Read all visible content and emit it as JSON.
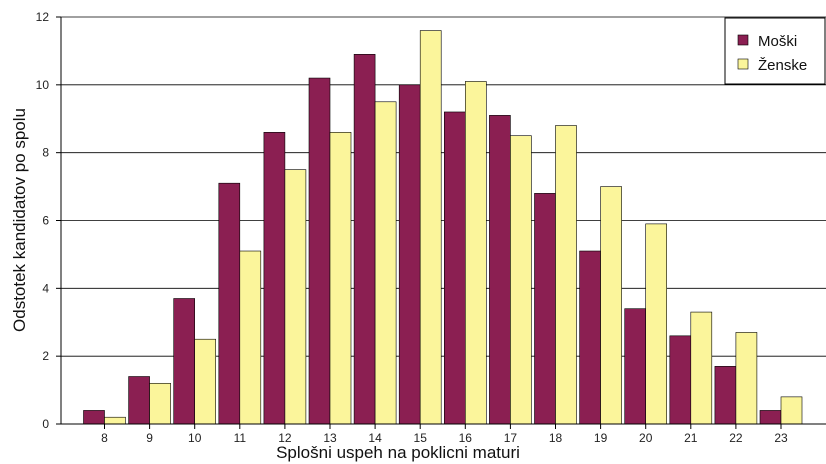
{
  "chart_data": {
    "type": "bar",
    "title": "",
    "xlabel": "Splošni uspeh na poklicni maturi",
    "ylabel": "Odstotek kandidatov po spolu",
    "categories": [
      "8",
      "9",
      "10",
      "11",
      "12",
      "13",
      "14",
      "15",
      "16",
      "17",
      "18",
      "19",
      "20",
      "21",
      "22",
      "23"
    ],
    "series": [
      {
        "name": "Moški",
        "color": "#8b1f52",
        "values": [
          0.4,
          1.4,
          3.7,
          7.1,
          8.6,
          10.2,
          10.9,
          10.0,
          9.2,
          9.1,
          6.8,
          5.1,
          3.4,
          2.6,
          1.7,
          0.4
        ]
      },
      {
        "name": "Ženske",
        "color": "#fbf59b",
        "values": [
          0.2,
          1.2,
          2.5,
          5.1,
          7.5,
          8.6,
          9.5,
          11.6,
          10.1,
          8.5,
          8.8,
          7.0,
          5.9,
          3.3,
          2.7,
          0.8
        ]
      }
    ],
    "ylim": [
      0,
      12
    ],
    "yticks": [
      "0",
      "2",
      "4",
      "6",
      "8",
      "10",
      "12"
    ],
    "grid": true,
    "legend_position": "top-right"
  }
}
